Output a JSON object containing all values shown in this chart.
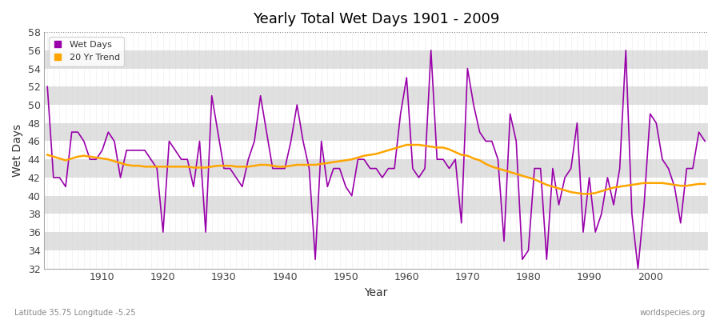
{
  "title": "Yearly Total Wet Days 1901 - 2009",
  "xlabel": "Year",
  "ylabel": "Wet Days",
  "footnote_left": "Latitude 35.75 Longitude -5.25",
  "footnote_right": "worldspecies.org",
  "ylim": [
    32,
    58
  ],
  "yticks": [
    32,
    34,
    36,
    38,
    40,
    42,
    44,
    46,
    48,
    50,
    52,
    54,
    56,
    58
  ],
  "bg_color": "#f0f0f0",
  "band_color_light": "#ffffff",
  "band_color_dark": "#e0e0e0",
  "line_color_wet": "#9900aa",
  "line_color_trend": "#FFA500",
  "legend_wet": "Wet Days",
  "legend_trend": "20 Yr Trend",
  "years": [
    1901,
    1902,
    1903,
    1904,
    1905,
    1906,
    1907,
    1908,
    1909,
    1910,
    1911,
    1912,
    1913,
    1914,
    1915,
    1916,
    1917,
    1918,
    1919,
    1920,
    1921,
    1922,
    1923,
    1924,
    1925,
    1926,
    1927,
    1928,
    1929,
    1930,
    1931,
    1932,
    1933,
    1934,
    1935,
    1936,
    1937,
    1938,
    1939,
    1940,
    1941,
    1942,
    1943,
    1944,
    1945,
    1946,
    1947,
    1948,
    1949,
    1950,
    1951,
    1952,
    1953,
    1954,
    1955,
    1956,
    1957,
    1958,
    1959,
    1960,
    1961,
    1962,
    1963,
    1964,
    1965,
    1966,
    1967,
    1968,
    1969,
    1970,
    1971,
    1972,
    1973,
    1974,
    1975,
    1976,
    1977,
    1978,
    1979,
    1980,
    1981,
    1982,
    1983,
    1984,
    1985,
    1986,
    1987,
    1988,
    1989,
    1990,
    1991,
    1992,
    1993,
    1994,
    1995,
    1996,
    1997,
    1998,
    1999,
    2000,
    2001,
    2002,
    2003,
    2004,
    2005,
    2006,
    2007,
    2008,
    2009
  ],
  "wet_days": [
    52,
    42,
    42,
    41,
    47,
    47,
    46,
    44,
    44,
    45,
    47,
    46,
    42,
    45,
    45,
    45,
    45,
    44,
    43,
    36,
    46,
    45,
    44,
    44,
    41,
    46,
    36,
    51,
    47,
    43,
    43,
    42,
    41,
    44,
    46,
    51,
    47,
    43,
    43,
    43,
    46,
    50,
    46,
    43,
    33,
    46,
    41,
    43,
    43,
    41,
    40,
    44,
    44,
    43,
    43,
    42,
    43,
    43,
    49,
    53,
    43,
    42,
    43,
    56,
    44,
    44,
    43,
    44,
    37,
    54,
    50,
    47,
    46,
    46,
    44,
    35,
    49,
    46,
    33,
    34,
    43,
    43,
    33,
    43,
    39,
    42,
    43,
    48,
    36,
    42,
    36,
    38,
    42,
    39,
    43,
    56,
    38,
    32,
    39,
    49,
    48,
    44,
    43,
    41,
    37,
    43,
    43,
    47,
    46
  ],
  "trend_vals": [
    44.5,
    44.3,
    44.1,
    43.9,
    44.1,
    44.3,
    44.4,
    44.3,
    44.2,
    44.1,
    44.0,
    43.8,
    43.6,
    43.4,
    43.3,
    43.3,
    43.2,
    43.2,
    43.2,
    43.2,
    43.2,
    43.2,
    43.2,
    43.2,
    43.1,
    43.1,
    43.1,
    43.2,
    43.3,
    43.3,
    43.3,
    43.2,
    43.2,
    43.2,
    43.3,
    43.4,
    43.4,
    43.3,
    43.2,
    43.2,
    43.3,
    43.4,
    43.4,
    43.4,
    43.4,
    43.5,
    43.6,
    43.7,
    43.8,
    43.9,
    44.0,
    44.2,
    44.4,
    44.5,
    44.6,
    44.8,
    45.0,
    45.2,
    45.4,
    45.6,
    45.6,
    45.6,
    45.5,
    45.4,
    45.3,
    45.3,
    45.1,
    44.8,
    44.5,
    44.4,
    44.1,
    43.9,
    43.5,
    43.2,
    43.0,
    42.8,
    42.6,
    42.4,
    42.2,
    42.0,
    41.8,
    41.5,
    41.2,
    41.0,
    40.8,
    40.6,
    40.4,
    40.3,
    40.2,
    40.2,
    40.3,
    40.5,
    40.7,
    40.9,
    41.0,
    41.1,
    41.2,
    41.3,
    41.4,
    41.4,
    41.4,
    41.4,
    41.3,
    41.2,
    41.1,
    41.1,
    41.2,
    41.3,
    41.3
  ]
}
